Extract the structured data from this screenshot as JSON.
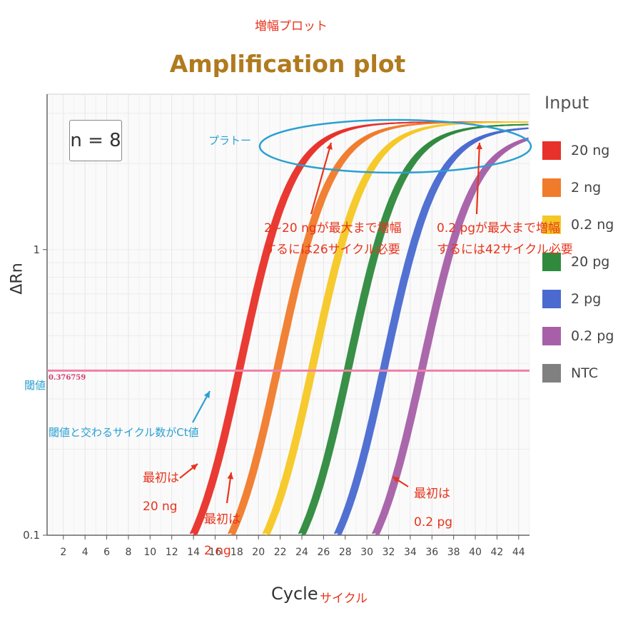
{
  "header": {
    "subtitle_jp": "増幅プロット",
    "title": "Amplification plot"
  },
  "chart_data": {
    "type": "line",
    "xlabel": "Cycle",
    "xlabel_jp": "サイクル",
    "ylabel": "ΔRn",
    "yscale": "log",
    "ylim": [
      0.1,
      3.5
    ],
    "xlim": [
      0.5,
      45
    ],
    "x_ticks": [
      "2",
      "4",
      "6",
      "8",
      "10",
      "12",
      "14",
      "16",
      "18",
      "20",
      "22",
      "24",
      "26",
      "28",
      "30",
      "32",
      "34",
      "36",
      "38",
      "40",
      "42",
      "44"
    ],
    "y_ticks": [
      "0.1",
      "1"
    ],
    "threshold": 0.376759,
    "threshold_label": "0.376759",
    "sample_size_label": "n = 8",
    "legend_title": "Input",
    "series": [
      {
        "name": "20 ng",
        "color": "#e8312a",
        "cross_01": 14.0,
        "plateau": 2.8
      },
      {
        "name": "2 ng",
        "color": "#f07b2c",
        "cross_01": 17.5,
        "plateau": 2.8
      },
      {
        "name": "0.2 ng",
        "color": "#f5c825",
        "cross_01": 20.7,
        "plateau": 2.8
      },
      {
        "name": "20 pg",
        "color": "#2f8a3e",
        "cross_01": 24.0,
        "plateau": 2.75
      },
      {
        "name": "2 pg",
        "color": "#4a6ad0",
        "cross_01": 27.3,
        "plateau": 2.7
      },
      {
        "name": "0.2 pg",
        "color": "#a760a8",
        "cross_01": 30.8,
        "plateau": 2.6
      },
      {
        "name": "NTC",
        "color": "#808080"
      }
    ]
  },
  "annotations": {
    "plateau": "プラトー",
    "threshold": "閾値",
    "ct_note": "閾値と交わるサイクル数がCt値",
    "first_20ng_line1": "最初は",
    "first_20ng_line2": "20 ng",
    "first_2ng_line1": "最初は",
    "first_2ng_line2": "2 ng",
    "first_02pg_line1": "最初は",
    "first_02pg_line2": "0.2 pg",
    "left_note_line1": "2~20 ngが最大まで増幅",
    "left_note_line2": "するには26サイクル必要",
    "right_note_line1": "0.2 pgが最大まで増幅",
    "right_note_line2": "するには42サイクル必要"
  }
}
